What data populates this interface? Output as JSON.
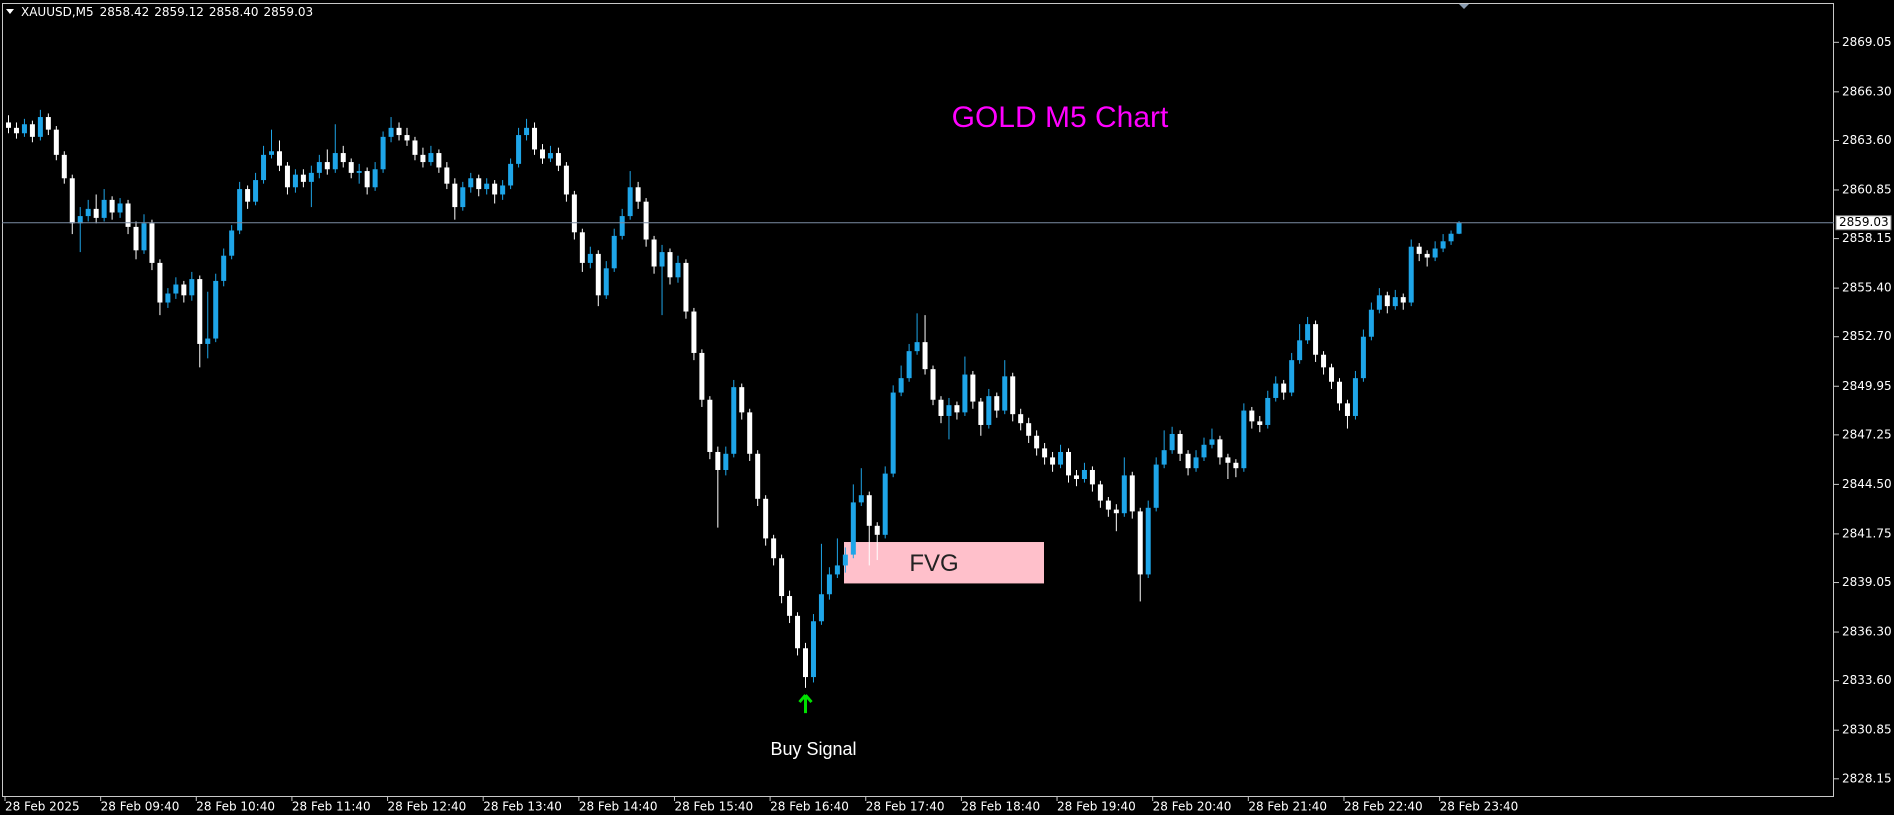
{
  "chart_data": {
    "type": "candlestick",
    "title": "GOLD M5 Chart",
    "title_color": "#ff00ff",
    "symbol": "XAUUSD,M5",
    "ohlc_labels": [
      "2858.42",
      "2859.12",
      "2858.40",
      "2859.03"
    ],
    "categories": [
      "28 Feb 2025",
      null,
      null,
      null,
      null,
      null,
      null,
      null,
      null,
      null,
      null,
      null,
      "28 Feb 09:40",
      null,
      null,
      null,
      null,
      null,
      null,
      null,
      null,
      null,
      null,
      null,
      "28 Feb 10:40",
      null,
      null,
      null,
      null,
      null,
      null,
      null,
      null,
      null,
      null,
      null,
      "28 Feb 11:40",
      null,
      null,
      null,
      null,
      null,
      null,
      null,
      null,
      null,
      null,
      null,
      "28 Feb 12:40",
      null,
      null,
      null,
      null,
      null,
      null,
      null,
      null,
      null,
      null,
      null,
      "28 Feb 13:40",
      null,
      null,
      null,
      null,
      null,
      null,
      null,
      null,
      null,
      null,
      null,
      "28 Feb 14:40",
      null,
      null,
      null,
      null,
      null,
      null,
      null,
      null,
      null,
      null,
      null,
      "28 Feb 15:40",
      null,
      null,
      null,
      null,
      null,
      null,
      null,
      null,
      null,
      null,
      null,
      "28 Feb 16:40",
      null,
      null,
      null,
      null,
      null,
      null,
      null,
      null,
      null,
      null,
      null,
      "28 Feb 17:40",
      null,
      null,
      null,
      null,
      null,
      null,
      null,
      null,
      null,
      null,
      null,
      "28 Feb 18:40",
      null,
      null,
      null,
      null,
      null,
      null,
      null,
      null,
      null,
      null,
      null,
      "28 Feb 19:40",
      null,
      null,
      null,
      null,
      null,
      null,
      null,
      null,
      null,
      null,
      null,
      "28 Feb 20:40",
      null,
      null,
      null,
      null,
      null,
      null,
      null,
      null,
      null,
      null,
      null,
      "28 Feb 21:40",
      null,
      null,
      null,
      null,
      null,
      null,
      null,
      null,
      null,
      null,
      null,
      "28 Feb 22:40",
      null,
      null,
      null,
      null,
      null,
      null,
      null,
      null,
      null,
      null,
      null,
      "28 Feb 23:40",
      null,
      null
    ],
    "candles": [
      [
        2864.6,
        2865.0,
        2864.0,
        2864.3
      ],
      [
        2864.3,
        2864.6,
        2863.7,
        2864.0
      ],
      [
        2864.0,
        2864.8,
        2863.8,
        2864.5
      ],
      [
        2864.5,
        2864.7,
        2863.5,
        2863.8
      ],
      [
        2863.8,
        2865.3,
        2863.6,
        2864.9
      ],
      [
        2864.9,
        2865.1,
        2863.9,
        2864.2
      ],
      [
        2864.2,
        2864.4,
        2862.5,
        2862.8
      ],
      [
        2862.8,
        2863.0,
        2861.2,
        2861.5
      ],
      [
        2861.5,
        2861.7,
        2858.4,
        2859.0
      ],
      [
        2859.0,
        2859.9,
        2857.4,
        2859.4
      ],
      [
        2859.4,
        2860.3,
        2859.1,
        2859.8
      ],
      [
        2859.8,
        2860.6,
        2859.0,
        2859.3
      ],
      [
        2859.3,
        2860.9,
        2859.1,
        2860.3
      ],
      [
        2860.3,
        2860.5,
        2859.2,
        2859.6
      ],
      [
        2859.6,
        2860.4,
        2859.3,
        2860.1
      ],
      [
        2860.1,
        2860.3,
        2858.4,
        2858.8
      ],
      [
        2858.8,
        2859.1,
        2857.0,
        2857.5
      ],
      [
        2857.5,
        2859.5,
        2857.3,
        2859.0
      ],
      [
        2859.0,
        2859.2,
        2856.4,
        2856.8
      ],
      [
        2856.8,
        2857.0,
        2853.9,
        2854.6
      ],
      [
        2854.6,
        2855.4,
        2854.3,
        2855.1
      ],
      [
        2855.1,
        2856.0,
        2854.8,
        2855.6
      ],
      [
        2855.6,
        2855.8,
        2854.6,
        2855.0
      ],
      [
        2855.0,
        2856.3,
        2854.7,
        2855.9
      ],
      [
        2855.9,
        2856.1,
        2851.0,
        2852.3
      ],
      [
        2852.3,
        2855.2,
        2851.5,
        2852.6
      ],
      [
        2852.6,
        2856.2,
        2852.4,
        2855.8
      ],
      [
        2855.8,
        2857.6,
        2855.5,
        2857.2
      ],
      [
        2857.2,
        2858.9,
        2857.0,
        2858.6
      ],
      [
        2858.6,
        2861.3,
        2858.4,
        2860.9
      ],
      [
        2860.9,
        2861.1,
        2859.8,
        2860.2
      ],
      [
        2860.2,
        2861.8,
        2860.0,
        2861.4
      ],
      [
        2861.4,
        2863.3,
        2861.2,
        2862.8
      ],
      [
        2862.8,
        2864.2,
        2862.6,
        2863.0
      ],
      [
        2863.0,
        2863.6,
        2861.9,
        2862.2
      ],
      [
        2862.2,
        2862.4,
        2860.6,
        2861.0
      ],
      [
        2861.0,
        2862.0,
        2860.7,
        2861.7
      ],
      [
        2861.7,
        2862.0,
        2861.0,
        2861.3
      ],
      [
        2861.3,
        2862.2,
        2859.9,
        2861.8
      ],
      [
        2861.8,
        2862.8,
        2861.5,
        2862.4
      ],
      [
        2862.4,
        2863.1,
        2861.7,
        2862.0
      ],
      [
        2862.0,
        2864.5,
        2861.8,
        2862.9
      ],
      [
        2862.9,
        2863.3,
        2862.1,
        2862.4
      ],
      [
        2862.4,
        2862.6,
        2861.5,
        2861.8
      ],
      [
        2861.8,
        2862.3,
        2861.2,
        2861.9
      ],
      [
        2861.9,
        2862.1,
        2860.6,
        2861.0
      ],
      [
        2861.0,
        2862.4,
        2860.8,
        2862.0
      ],
      [
        2862.0,
        2864.1,
        2861.8,
        2863.8
      ],
      [
        2863.8,
        2864.9,
        2863.5,
        2864.3
      ],
      [
        2864.3,
        2864.6,
        2863.6,
        2863.9
      ],
      [
        2863.9,
        2864.3,
        2863.3,
        2863.6
      ],
      [
        2863.6,
        2863.8,
        2862.5,
        2862.8
      ],
      [
        2862.8,
        2863.2,
        2862.1,
        2862.4
      ],
      [
        2862.4,
        2863.3,
        2862.2,
        2862.9
      ],
      [
        2862.9,
        2863.1,
        2861.8,
        2862.1
      ],
      [
        2862.1,
        2862.4,
        2860.9,
        2861.2
      ],
      [
        2861.2,
        2861.5,
        2859.2,
        2859.9
      ],
      [
        2859.9,
        2861.3,
        2859.7,
        2861.0
      ],
      [
        2861.0,
        2861.8,
        2860.7,
        2861.5
      ],
      [
        2861.5,
        2861.7,
        2860.5,
        2860.9
      ],
      [
        2860.9,
        2861.5,
        2860.6,
        2861.2
      ],
      [
        2861.2,
        2861.4,
        2860.1,
        2860.6
      ],
      [
        2860.6,
        2861.4,
        2860.3,
        2861.1
      ],
      [
        2861.1,
        2862.6,
        2860.9,
        2862.3
      ],
      [
        2862.3,
        2864.3,
        2862.1,
        2863.9
      ],
      [
        2863.9,
        2864.8,
        2863.6,
        2864.3
      ],
      [
        2864.3,
        2864.6,
        2862.8,
        2863.1
      ],
      [
        2863.1,
        2863.4,
        2862.3,
        2862.6
      ],
      [
        2862.6,
        2863.3,
        2862.4,
        2862.9
      ],
      [
        2862.9,
        2863.2,
        2861.9,
        2862.2
      ],
      [
        2862.2,
        2862.4,
        2860.2,
        2860.6
      ],
      [
        2860.6,
        2860.8,
        2858.1,
        2858.5
      ],
      [
        2858.5,
        2858.7,
        2856.3,
        2856.8
      ],
      [
        2856.8,
        2857.7,
        2856.5,
        2857.3
      ],
      [
        2857.3,
        2857.5,
        2854.4,
        2855.0
      ],
      [
        2855.0,
        2856.9,
        2854.8,
        2856.5
      ],
      [
        2856.5,
        2858.7,
        2856.3,
        2858.3
      ],
      [
        2858.3,
        2859.8,
        2858.1,
        2859.4
      ],
      [
        2859.4,
        2861.9,
        2859.2,
        2861.0
      ],
      [
        2861.0,
        2861.3,
        2859.8,
        2860.2
      ],
      [
        2860.2,
        2860.4,
        2857.7,
        2858.1
      ],
      [
        2858.1,
        2858.3,
        2856.2,
        2856.6
      ],
      [
        2856.6,
        2857.8,
        2853.9,
        2857.4
      ],
      [
        2857.4,
        2857.6,
        2855.6,
        2856.0
      ],
      [
        2856.0,
        2857.2,
        2855.7,
        2856.8
      ],
      [
        2856.8,
        2857.0,
        2853.7,
        2854.1
      ],
      [
        2854.1,
        2854.3,
        2851.4,
        2851.8
      ],
      [
        2851.8,
        2852.0,
        2848.8,
        2849.2
      ],
      [
        2849.2,
        2849.4,
        2845.9,
        2846.3
      ],
      [
        2846.3,
        2846.6,
        2842.1,
        2845.3
      ],
      [
        2845.3,
        2846.6,
        2845.0,
        2846.2
      ],
      [
        2846.2,
        2850.3,
        2846.0,
        2849.9
      ],
      [
        2849.9,
        2850.1,
        2848.1,
        2848.5
      ],
      [
        2848.5,
        2848.7,
        2845.8,
        2846.2
      ],
      [
        2846.2,
        2846.4,
        2843.3,
        2843.7
      ],
      [
        2843.7,
        2843.9,
        2841.1,
        2841.5
      ],
      [
        2841.5,
        2841.7,
        2840.0,
        2840.4
      ],
      [
        2840.4,
        2840.6,
        2837.9,
        2838.3
      ],
      [
        2838.3,
        2838.6,
        2836.8,
        2837.2
      ],
      [
        2837.2,
        2837.4,
        2835.0,
        2835.4
      ],
      [
        2835.4,
        2835.7,
        2833.2,
        2833.8
      ],
      [
        2833.8,
        2837.3,
        2833.5,
        2836.9
      ],
      [
        2836.9,
        2841.2,
        2836.7,
        2838.4
      ],
      [
        2838.4,
        2839.9,
        2838.1,
        2839.5
      ],
      [
        2839.5,
        2841.5,
        2839.3,
        2840.0
      ],
      [
        2840.0,
        2841.0,
        2839.6,
        2840.6
      ],
      [
        2840.6,
        2844.5,
        2840.4,
        2843.5
      ],
      [
        2843.5,
        2845.4,
        2843.3,
        2843.9
      ],
      [
        2843.9,
        2844.1,
        2840.0,
        2842.2
      ],
      [
        2842.2,
        2842.4,
        2840.3,
        2841.7
      ],
      [
        2841.7,
        2845.5,
        2841.5,
        2845.1
      ],
      [
        2845.1,
        2850.0,
        2844.9,
        2849.6
      ],
      [
        2849.6,
        2851.1,
        2849.4,
        2850.4
      ],
      [
        2850.4,
        2852.3,
        2850.2,
        2851.9
      ],
      [
        2851.9,
        2854.0,
        2851.7,
        2852.4
      ],
      [
        2852.4,
        2853.9,
        2850.6,
        2850.9
      ],
      [
        2850.9,
        2851.1,
        2848.9,
        2849.2
      ],
      [
        2849.2,
        2849.4,
        2847.9,
        2848.3
      ],
      [
        2848.3,
        2849.3,
        2847.0,
        2848.9
      ],
      [
        2848.9,
        2849.1,
        2848.1,
        2848.5
      ],
      [
        2848.5,
        2851.6,
        2848.3,
        2850.6
      ],
      [
        2850.6,
        2850.8,
        2848.7,
        2849.1
      ],
      [
        2849.1,
        2849.3,
        2847.2,
        2847.8
      ],
      [
        2847.8,
        2849.8,
        2847.6,
        2849.4
      ],
      [
        2849.4,
        2849.6,
        2848.2,
        2848.6
      ],
      [
        2848.6,
        2851.4,
        2848.4,
        2850.5
      ],
      [
        2850.5,
        2850.7,
        2848.0,
        2848.4
      ],
      [
        2848.4,
        2848.7,
        2847.5,
        2847.9
      ],
      [
        2847.9,
        2848.2,
        2846.8,
        2847.2
      ],
      [
        2847.2,
        2847.5,
        2846.1,
        2846.5
      ],
      [
        2846.5,
        2846.8,
        2845.6,
        2846.0
      ],
      [
        2846.0,
        2846.3,
        2845.2,
        2845.6
      ],
      [
        2845.6,
        2846.7,
        2845.4,
        2846.3
      ],
      [
        2846.3,
        2846.5,
        2844.6,
        2845.0
      ],
      [
        2845.0,
        2845.3,
        2844.4,
        2844.8
      ],
      [
        2844.8,
        2845.7,
        2844.6,
        2845.3
      ],
      [
        2845.3,
        2845.5,
        2844.1,
        2844.5
      ],
      [
        2844.5,
        2844.7,
        2843.2,
        2843.6
      ],
      [
        2843.6,
        2843.8,
        2842.7,
        2843.1
      ],
      [
        2843.1,
        2843.4,
        2841.9,
        2842.9
      ],
      [
        2842.9,
        2846.0,
        2842.7,
        2845.0
      ],
      [
        2845.0,
        2845.2,
        2842.6,
        2843.0
      ],
      [
        2843.0,
        2843.2,
        2838.0,
        2839.5
      ],
      [
        2839.5,
        2843.6,
        2839.3,
        2843.2
      ],
      [
        2843.2,
        2846.0,
        2843.0,
        2845.6
      ],
      [
        2845.6,
        2847.5,
        2845.4,
        2846.4
      ],
      [
        2846.4,
        2847.7,
        2846.2,
        2847.3
      ],
      [
        2847.3,
        2847.5,
        2845.8,
        2846.2
      ],
      [
        2846.2,
        2846.4,
        2845.0,
        2845.4
      ],
      [
        2845.4,
        2846.4,
        2845.2,
        2846.0
      ],
      [
        2846.0,
        2847.1,
        2845.8,
        2846.7
      ],
      [
        2846.7,
        2847.6,
        2846.5,
        2847.0
      ],
      [
        2847.0,
        2847.2,
        2845.6,
        2846.0
      ],
      [
        2846.0,
        2846.2,
        2844.8,
        2845.7
      ],
      [
        2845.7,
        2845.9,
        2844.9,
        2845.4
      ],
      [
        2845.4,
        2849.0,
        2845.2,
        2848.6
      ],
      [
        2848.6,
        2848.8,
        2847.6,
        2848.0
      ],
      [
        2848.0,
        2848.3,
        2847.4,
        2847.8
      ],
      [
        2847.8,
        2849.7,
        2847.6,
        2849.3
      ],
      [
        2849.3,
        2850.5,
        2849.1,
        2850.1
      ],
      [
        2850.1,
        2850.3,
        2849.2,
        2849.6
      ],
      [
        2849.6,
        2851.8,
        2849.4,
        2851.4
      ],
      [
        2851.4,
        2853.4,
        2851.2,
        2852.5
      ],
      [
        2852.5,
        2853.8,
        2852.3,
        2853.4
      ],
      [
        2853.4,
        2853.6,
        2851.3,
        2851.7
      ],
      [
        2851.7,
        2851.9,
        2850.6,
        2851.0
      ],
      [
        2851.0,
        2851.2,
        2849.8,
        2850.2
      ],
      [
        2850.2,
        2850.4,
        2848.6,
        2849.0
      ],
      [
        2849.0,
        2849.2,
        2847.6,
        2848.3
      ],
      [
        2848.3,
        2850.8,
        2848.1,
        2850.4
      ],
      [
        2850.4,
        2853.1,
        2850.2,
        2852.7
      ],
      [
        2852.7,
        2854.6,
        2852.5,
        2854.2
      ],
      [
        2854.2,
        2855.4,
        2854.0,
        2855.0
      ],
      [
        2855.0,
        2855.2,
        2854.0,
        2854.4
      ],
      [
        2854.4,
        2855.3,
        2854.2,
        2854.9
      ],
      [
        2854.9,
        2855.1,
        2854.2,
        2854.6
      ],
      [
        2854.6,
        2858.1,
        2854.4,
        2857.7
      ],
      [
        2857.7,
        2857.9,
        2856.9,
        2857.3
      ],
      [
        2857.3,
        2857.5,
        2856.6,
        2857.1
      ],
      [
        2857.1,
        2858.0,
        2856.9,
        2857.6
      ],
      [
        2857.6,
        2858.4,
        2857.4,
        2858.0
      ],
      [
        2858.0,
        2858.6,
        2857.8,
        2858.42
      ],
      [
        2858.42,
        2859.12,
        2858.4,
        2859.03
      ]
    ],
    "up_color": "#1ea5e8",
    "down_color": "#ffffff",
    "ylim": [
      2827.14,
      2871.2
    ],
    "yticks": [
      2869.05,
      {
        "value": 2866.3,
        "label": "2866.30"
      },
      {
        "value": 2863.6,
        "label": "2863.60"
      },
      2860.85,
      2858.15,
      {
        "value": 2855.4,
        "label": "2855.40"
      },
      {
        "value": 2852.7,
        "label": "2852.70"
      },
      2849.95,
      2847.25,
      {
        "value": 2844.5,
        "label": "2844.50"
      },
      2841.75,
      2839.05,
      {
        "value": 2836.3,
        "label": "2836.30"
      },
      {
        "value": 2833.6,
        "label": "2833.60"
      },
      2830.85,
      2828.15
    ],
    "grid": false,
    "price_line_color": "#7a8ca3",
    "fvg": {
      "label": "FVG",
      "top": 2841.3,
      "bottom": 2839.0,
      "color": "#ffc0cb"
    },
    "buy_signal": {
      "label": "Buy Signal",
      "price": 2832.3,
      "color": "#00e000"
    }
  }
}
